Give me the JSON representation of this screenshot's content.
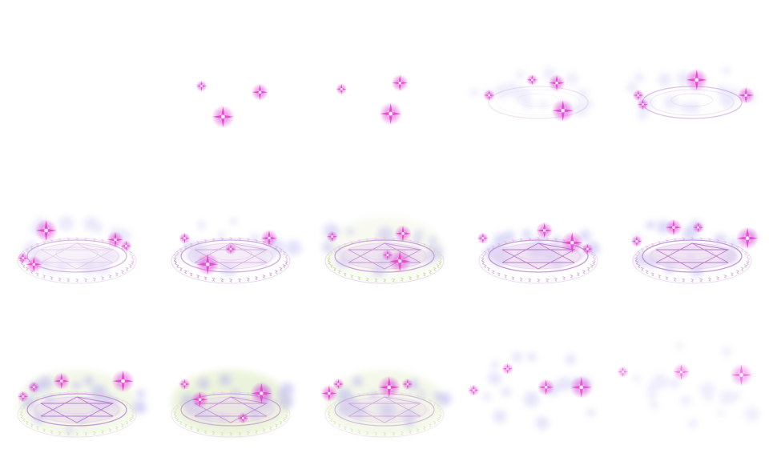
{
  "sheet": {
    "columns": 5,
    "rows": 3,
    "frame_count": 15,
    "colors": {
      "background": "#ffffff",
      "sparkle": "#e040d0",
      "sparkle_core": "#fff0ff",
      "ring": "#c89ad8",
      "ring_faint": "#e6d2ee",
      "haze_violet": "#b8b4f0",
      "haze_green": "#d6e6b0",
      "runes": "#cc99cc",
      "runes_green": "#c8d890",
      "star_lines": "#b060c8"
    }
  },
  "frames": [
    {
      "id": "frame-01",
      "ring": 0,
      "glow": 0,
      "runes": 0,
      "star": 0,
      "haze": 0,
      "green": 0,
      "sparkles": 0
    },
    {
      "id": "frame-02",
      "ring": 0,
      "glow": 0,
      "runes": 0,
      "star": 0,
      "haze": 0,
      "green": 0,
      "sparkles": 1
    },
    {
      "id": "frame-03",
      "ring": 0,
      "glow": 0,
      "runes": 0,
      "star": 0,
      "haze": 0,
      "green": 0,
      "sparkles": 1
    },
    {
      "id": "frame-04",
      "ring": 0.25,
      "glow": 0,
      "runes": 0,
      "star": 0,
      "haze": 0.4,
      "green": 0,
      "sparkles": 1
    },
    {
      "id": "frame-05",
      "ring": 0.6,
      "glow": 0,
      "runes": 0,
      "star": 0,
      "haze": 0.5,
      "green": 0,
      "sparkles": 1
    },
    {
      "id": "frame-06",
      "ring": 0.7,
      "glow": 0.3,
      "runes": 0.7,
      "star": 0.2,
      "haze": 0.5,
      "green": 0,
      "sparkles": 1
    },
    {
      "id": "frame-07",
      "ring": 0.8,
      "glow": 0.4,
      "runes": 0.9,
      "star": 0.4,
      "haze": 0.7,
      "green": 0,
      "sparkles": 1
    },
    {
      "id": "frame-08",
      "ring": 0.9,
      "glow": 0.5,
      "runes": 0.9,
      "star": 0.6,
      "haze": 0.8,
      "green": 0.3,
      "sparkles": 1
    },
    {
      "id": "frame-09",
      "ring": 1,
      "glow": 0.6,
      "runes": 0.8,
      "star": 0.8,
      "haze": 0.9,
      "green": 0,
      "sparkles": 1
    },
    {
      "id": "frame-10",
      "ring": 1,
      "glow": 0.6,
      "runes": 0.8,
      "star": 0.8,
      "haze": 0.9,
      "green": 0,
      "sparkles": 1
    },
    {
      "id": "frame-11",
      "ring": 1,
      "glow": 0.5,
      "runes": 0.6,
      "star": 0.8,
      "haze": 1,
      "green": 0.5,
      "sparkles": 1
    },
    {
      "id": "frame-12",
      "ring": 0.8,
      "glow": 0.4,
      "runes": 0.6,
      "star": 0.6,
      "haze": 1,
      "green": 0.8,
      "sparkles": 1
    },
    {
      "id": "frame-13",
      "ring": 0.6,
      "glow": 0.3,
      "runes": 0.5,
      "star": 0.4,
      "haze": 1,
      "green": 0.5,
      "sparkles": 1
    },
    {
      "id": "frame-14",
      "ring": 0,
      "glow": 0,
      "runes": 0,
      "star": 0,
      "haze": 0.6,
      "green": 0,
      "sparkles": 0.9
    },
    {
      "id": "frame-15",
      "ring": 0,
      "glow": 0,
      "runes": 0,
      "star": 0,
      "haze": 0.4,
      "green": 0,
      "sparkles": 0.7
    }
  ]
}
